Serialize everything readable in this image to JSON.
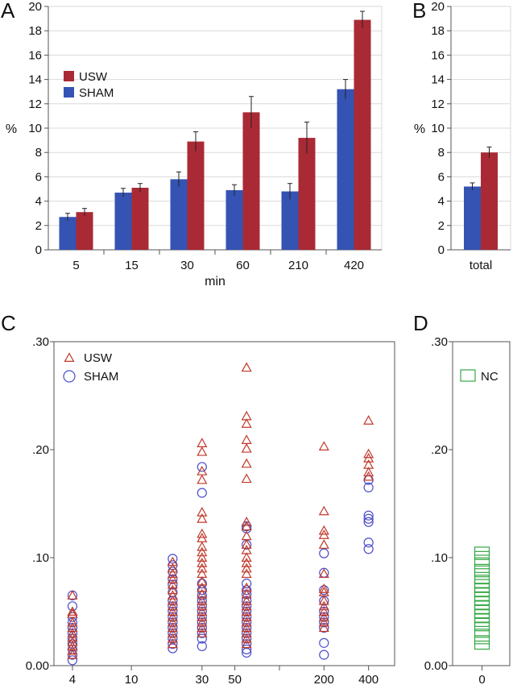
{
  "colors": {
    "usw_bar": "#a92a35",
    "sham_bar": "#3553b3",
    "usw_marker": "#c0392b",
    "sham_marker": "#4a4ec8",
    "nc_marker": "#35a845",
    "grid": "#d9d9d9",
    "axis": "#555555"
  },
  "chart_data": [
    {
      "panel": "A",
      "type": "bar",
      "categories": [
        "5",
        "15",
        "30",
        "60",
        "210",
        "420"
      ],
      "xlabel": "min",
      "ylabel": "%",
      "ylim": [
        0,
        20
      ],
      "yticks": [
        0,
        2,
        4,
        6,
        8,
        10,
        12,
        14,
        16,
        18,
        20
      ],
      "grid": true,
      "legend": "top-left",
      "series": [
        {
          "name": "USW",
          "values": [
            3.1,
            5.1,
            8.9,
            11.3,
            9.2,
            18.9
          ],
          "errors": [
            0.3,
            0.35,
            0.8,
            1.3,
            1.3,
            0.7
          ]
        },
        {
          "name": "SHAM",
          "values": [
            2.7,
            4.7,
            5.8,
            4.9,
            4.8,
            13.2
          ],
          "errors": [
            0.3,
            0.35,
            0.6,
            0.45,
            0.65,
            0.8
          ]
        }
      ]
    },
    {
      "panel": "B",
      "type": "bar",
      "categories": [
        "total"
      ],
      "ylabel": "%",
      "ylim": [
        0,
        20
      ],
      "yticks": [
        0,
        2,
        4,
        6,
        8,
        10,
        12,
        14,
        16,
        18,
        20
      ],
      "grid": true,
      "series": [
        {
          "name": "USW",
          "values": [
            8.0
          ],
          "errors": [
            0.45
          ]
        },
        {
          "name": "SHAM",
          "values": [
            5.2
          ],
          "errors": [
            0.3
          ]
        }
      ]
    },
    {
      "panel": "C",
      "type": "scatter",
      "x_scale": "log",
      "xticks": [
        4,
        10,
        30,
        50,
        200,
        400
      ],
      "yticks": [
        ".30",
        ".20",
        ".10",
        "0.00"
      ],
      "ylim": [
        0,
        0.3
      ],
      "legend": "top-left",
      "series": [
        {
          "name": "USW",
          "marker": "triangle",
          "points": [
            [
              4,
              0.065
            ],
            [
              4,
              0.05
            ],
            [
              4,
              0.048
            ],
            [
              4,
              0.04
            ],
            [
              4,
              0.035
            ],
            [
              4,
              0.03
            ],
            [
              4,
              0.026
            ],
            [
              4,
              0.022
            ],
            [
              4,
              0.018
            ],
            [
              4,
              0.014
            ],
            [
              4,
              0.01
            ],
            [
              19,
              0.096
            ],
            [
              19,
              0.09
            ],
            [
              19,
              0.085
            ],
            [
              19,
              0.08
            ],
            [
              19,
              0.075
            ],
            [
              19,
              0.07
            ],
            [
              19,
              0.065
            ],
            [
              19,
              0.06
            ],
            [
              19,
              0.055
            ],
            [
              19,
              0.05
            ],
            [
              19,
              0.045
            ],
            [
              19,
              0.04
            ],
            [
              19,
              0.035
            ],
            [
              19,
              0.03
            ],
            [
              19,
              0.025
            ],
            [
              19,
              0.02
            ],
            [
              30,
              0.206
            ],
            [
              30,
              0.198
            ],
            [
              30,
              0.18
            ],
            [
              30,
              0.172
            ],
            [
              30,
              0.142
            ],
            [
              30,
              0.136
            ],
            [
              30,
              0.122
            ],
            [
              30,
              0.118
            ],
            [
              30,
              0.11
            ],
            [
              30,
              0.105
            ],
            [
              30,
              0.1
            ],
            [
              30,
              0.095
            ],
            [
              30,
              0.09
            ],
            [
              30,
              0.085
            ],
            [
              30,
              0.078
            ],
            [
              30,
              0.072
            ],
            [
              30,
              0.066
            ],
            [
              30,
              0.06
            ],
            [
              30,
              0.055
            ],
            [
              30,
              0.05
            ],
            [
              30,
              0.045
            ],
            [
              30,
              0.04
            ],
            [
              30,
              0.035
            ],
            [
              30,
              0.03
            ],
            [
              60,
              0.276
            ],
            [
              60,
              0.231
            ],
            [
              60,
              0.224
            ],
            [
              60,
              0.209
            ],
            [
              60,
              0.201
            ],
            [
              60,
              0.187
            ],
            [
              60,
              0.173
            ],
            [
              60,
              0.133
            ],
            [
              60,
              0.129
            ],
            [
              60,
              0.12
            ],
            [
              60,
              0.112
            ],
            [
              60,
              0.107
            ],
            [
              60,
              0.1
            ],
            [
              60,
              0.095
            ],
            [
              60,
              0.09
            ],
            [
              60,
              0.085
            ],
            [
              60,
              0.072
            ],
            [
              60,
              0.066
            ],
            [
              60,
              0.06
            ],
            [
              60,
              0.055
            ],
            [
              60,
              0.05
            ],
            [
              60,
              0.045
            ],
            [
              60,
              0.04
            ],
            [
              60,
              0.035
            ],
            [
              60,
              0.03
            ],
            [
              60,
              0.025
            ],
            [
              60,
              0.02
            ],
            [
              200,
              0.203
            ],
            [
              200,
              0.143
            ],
            [
              200,
              0.125
            ],
            [
              200,
              0.121
            ],
            [
              200,
              0.112
            ],
            [
              200,
              0.085
            ],
            [
              200,
              0.071
            ],
            [
              200,
              0.068
            ],
            [
              200,
              0.06
            ],
            [
              200,
              0.055
            ],
            [
              200,
              0.05
            ],
            [
              200,
              0.045
            ],
            [
              200,
              0.04
            ],
            [
              200,
              0.035
            ],
            [
              400,
              0.227
            ],
            [
              400,
              0.196
            ],
            [
              400,
              0.192
            ],
            [
              400,
              0.186
            ],
            [
              400,
              0.179
            ],
            [
              400,
              0.175
            ]
          ]
        },
        {
          "name": "SHAM",
          "marker": "circle",
          "points": [
            [
              4,
              0.065
            ],
            [
              4,
              0.055
            ],
            [
              4,
              0.045
            ],
            [
              4,
              0.04
            ],
            [
              4,
              0.035
            ],
            [
              4,
              0.03
            ],
            [
              4,
              0.025
            ],
            [
              4,
              0.02
            ],
            [
              4,
              0.015
            ],
            [
              4,
              0.01
            ],
            [
              4,
              0.005
            ],
            [
              19,
              0.099
            ],
            [
              19,
              0.093
            ],
            [
              19,
              0.087
            ],
            [
              19,
              0.08
            ],
            [
              19,
              0.075
            ],
            [
              19,
              0.068
            ],
            [
              19,
              0.06
            ],
            [
              19,
              0.055
            ],
            [
              19,
              0.05
            ],
            [
              19,
              0.045
            ],
            [
              19,
              0.04
            ],
            [
              19,
              0.035
            ],
            [
              19,
              0.03
            ],
            [
              19,
              0.025
            ],
            [
              19,
              0.02
            ],
            [
              19,
              0.016
            ],
            [
              30,
              0.184
            ],
            [
              30,
              0.16
            ],
            [
              30,
              0.076
            ],
            [
              30,
              0.07
            ],
            [
              30,
              0.065
            ],
            [
              30,
              0.06
            ],
            [
              30,
              0.055
            ],
            [
              30,
              0.05
            ],
            [
              30,
              0.045
            ],
            [
              30,
              0.04
            ],
            [
              30,
              0.035
            ],
            [
              30,
              0.03
            ],
            [
              30,
              0.025
            ],
            [
              30,
              0.018
            ],
            [
              60,
              0.129
            ],
            [
              60,
              0.127
            ],
            [
              60,
              0.112
            ],
            [
              60,
              0.076
            ],
            [
              60,
              0.07
            ],
            [
              60,
              0.066
            ],
            [
              60,
              0.06
            ],
            [
              60,
              0.055
            ],
            [
              60,
              0.05
            ],
            [
              60,
              0.045
            ],
            [
              60,
              0.04
            ],
            [
              60,
              0.035
            ],
            [
              60,
              0.03
            ],
            [
              60,
              0.025
            ],
            [
              60,
              0.02
            ],
            [
              60,
              0.015
            ],
            [
              60,
              0.012
            ],
            [
              200,
              0.104
            ],
            [
              200,
              0.086
            ],
            [
              200,
              0.07
            ],
            [
              200,
              0.06
            ],
            [
              200,
              0.05
            ],
            [
              200,
              0.045
            ],
            [
              200,
              0.04
            ],
            [
              200,
              0.035
            ],
            [
              200,
              0.021
            ],
            [
              200,
              0.01
            ],
            [
              400,
              0.172
            ],
            [
              400,
              0.165
            ],
            [
              400,
              0.139
            ],
            [
              400,
              0.136
            ],
            [
              400,
              0.133
            ],
            [
              400,
              0.114
            ],
            [
              400,
              0.108
            ]
          ]
        }
      ]
    },
    {
      "panel": "D",
      "type": "scatter",
      "xticks": [
        "0"
      ],
      "yticks": [
        ".30",
        ".20",
        ".10",
        "0.00"
      ],
      "ylim": [
        0,
        0.3
      ],
      "legend": "top-right",
      "series": [
        {
          "name": "NC",
          "marker": "square",
          "values": [
            0.106,
            0.102,
            0.096,
            0.09,
            0.086,
            0.08,
            0.076,
            0.072,
            0.068,
            0.064,
            0.06,
            0.056,
            0.052,
            0.048,
            0.044,
            0.04,
            0.036,
            0.03,
            0.024,
            0.019
          ]
        }
      ]
    }
  ]
}
